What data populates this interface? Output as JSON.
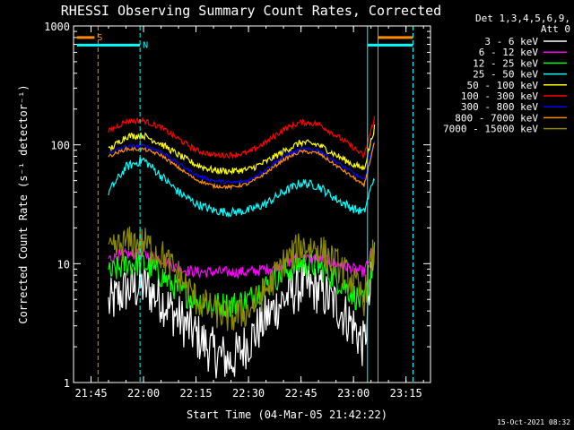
{
  "chart_data": {
    "type": "line",
    "title": "RHESSI Observing Summary Count Rates, Corrected",
    "xlabel": "Start Time (04-Mar-05 21:42:22)",
    "ylabel": "Corrected Count Rate (s⁻¹ detector⁻¹)",
    "y_scale": "log",
    "ylim": [
      1,
      1000
    ],
    "xlim": [
      "21:40",
      "23:22"
    ],
    "x_ticks": [
      "21:45",
      "22:00",
      "22:15",
      "22:30",
      "22:45",
      "23:00",
      "23:15"
    ],
    "y_ticks": [
      "1",
      "10",
      "100",
      "1000"
    ],
    "legend_header": [
      "Det 1,3,4,5,6,9,",
      "Att 0"
    ],
    "legend_position": "right",
    "footer": "15-Oct-2021 08:32",
    "flags": [
      {
        "label": "S",
        "color": "#ff8c00",
        "start": "21:41",
        "end": "21:46",
        "level": 800
      },
      {
        "label": "",
        "color": "#ff8c00",
        "start": "23:07",
        "end": "23:17",
        "level": 800
      },
      {
        "label": "N",
        "color": "#00ffff",
        "start": "21:41",
        "end": "21:59",
        "level": 690
      },
      {
        "label": "",
        "color": "#00ffff",
        "start": "23:04",
        "end": "23:17",
        "level": 690
      }
    ],
    "markers": [
      {
        "time": "21:40",
        "color": "#00ffff",
        "style": "solid"
      },
      {
        "time": "21:47",
        "color": "#ff8c00",
        "style": "dashed"
      },
      {
        "time": "21:59",
        "color": "#00ffff",
        "style": "dashed"
      },
      {
        "time": "23:04",
        "color": "#00ffff",
        "style": "solid"
      },
      {
        "time": "23:07",
        "color": "#ff8c00",
        "style": "solid"
      },
      {
        "time": "23:17",
        "color": "#00ffff",
        "style": "dashed"
      }
    ],
    "x": [
      "21:50",
      "21:55",
      "22:00",
      "22:05",
      "22:10",
      "22:15",
      "22:20",
      "22:25",
      "22:30",
      "22:35",
      "22:40",
      "22:45",
      "22:50",
      "22:55",
      "23:00",
      "23:03",
      "23:06"
    ],
    "series": [
      {
        "name": "3 - 6 keV",
        "color": "#ffffff",
        "noise": 0.22,
        "values": [
          4.5,
          6,
          6.5,
          5,
          3.5,
          2.5,
          1.8,
          1.5,
          2.2,
          3.5,
          5,
          6.5,
          6,
          4.5,
          3,
          2,
          12
        ]
      },
      {
        "name": "6 - 12 keV",
        "color": "#ff00ff",
        "noise": 0.05,
        "values": [
          11,
          12,
          12,
          11,
          9,
          8.5,
          8.5,
          8.5,
          8.5,
          9,
          10,
          11,
          11,
          10,
          9,
          8.5,
          14
        ]
      },
      {
        "name": "12 - 25 keV",
        "color": "#00ff00",
        "noise": 0.12,
        "values": [
          8,
          10,
          10,
          8,
          6,
          5,
          4.5,
          4.5,
          5,
          6.5,
          8.5,
          10,
          9.5,
          7.5,
          5.5,
          4.5,
          12
        ]
      },
      {
        "name": "25 - 50 keV",
        "color": "#00ffff",
        "noise": 0.04,
        "values": [
          40,
          65,
          75,
          55,
          40,
          32,
          28,
          27,
          28,
          32,
          40,
          48,
          45,
          35,
          29,
          27,
          55
        ]
      },
      {
        "name": "50 - 100 keV",
        "color": "#ffff00",
        "noise": 0.03,
        "values": [
          90,
          118,
          120,
          102,
          82,
          68,
          61,
          60,
          62,
          72,
          88,
          105,
          100,
          82,
          68,
          63,
          140
        ]
      },
      {
        "name": "100 - 300 keV",
        "color": "#ff0000",
        "noise": 0.025,
        "values": [
          130,
          158,
          160,
          140,
          112,
          90,
          82,
          82,
          86,
          105,
          135,
          155,
          150,
          120,
          95,
          80,
          170
        ]
      },
      {
        "name": "300 - 800 keV",
        "color": "#0000ff",
        "noise": 0.015,
        "values": [
          85,
          97,
          98,
          88,
          70,
          56,
          50,
          48,
          50,
          62,
          80,
          92,
          90,
          72,
          58,
          50,
          110
        ]
      },
      {
        "name": "800 - 7000 keV",
        "color": "#ff8c00",
        "noise": 0.015,
        "values": [
          80,
          92,
          92,
          82,
          64,
          51,
          45,
          44,
          47,
          58,
          75,
          88,
          85,
          67,
          53,
          45,
          105
        ]
      },
      {
        "name": "7000 - 15000 keV",
        "color": "#8b8b00",
        "noise": 0.15,
        "values": [
          12,
          15,
          15,
          12,
          8,
          5,
          4,
          3.5,
          4,
          6,
          10,
          14,
          13.5,
          10,
          7,
          5,
          14
        ]
      }
    ]
  }
}
